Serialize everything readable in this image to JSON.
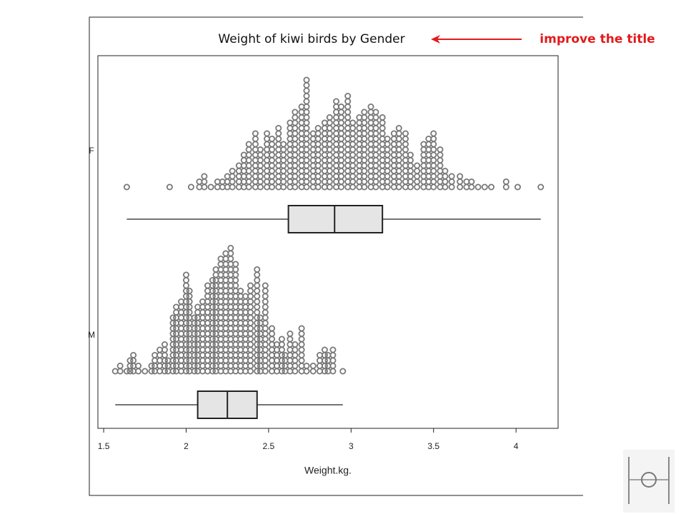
{
  "chart_data": {
    "type": "dotplot-box",
    "title": "Weight of kiwi birds by Gender",
    "annotation": "improve the title",
    "xlabel": "Weight.kg.",
    "xlim": [
      1.465,
      4.255
    ],
    "xticks": [
      1.5,
      2,
      2.5,
      3,
      3.5,
      4
    ],
    "dot_color": "#777777",
    "box_color": "#e5e5e5",
    "annotation_color": "#e31a1c",
    "groups": [
      {
        "name": "F",
        "x": [
          1.64,
          1.9,
          2.03,
          2.08,
          2.11,
          2.15,
          2.19,
          2.22,
          2.25,
          2.28,
          2.32,
          2.35,
          2.38,
          2.42,
          2.45,
          2.49,
          2.52,
          2.56,
          2.59,
          2.63,
          2.66,
          2.7,
          2.73,
          2.77,
          2.8,
          2.84,
          2.87,
          2.91,
          2.94,
          2.98,
          3.01,
          3.05,
          3.08,
          3.12,
          3.15,
          3.19,
          3.22,
          3.26,
          3.29,
          3.33,
          3.36,
          3.4,
          3.44,
          3.47,
          3.5,
          3.54,
          3.57,
          3.61,
          3.66,
          3.7,
          3.73,
          3.77,
          3.81,
          3.85,
          3.94,
          4.01,
          4.15
        ],
        "counts": [
          1,
          1,
          1,
          2,
          3,
          1,
          2,
          2,
          3,
          4,
          5,
          7,
          9,
          11,
          8,
          11,
          10,
          12,
          9,
          13,
          15,
          16,
          21,
          11,
          12,
          13,
          14,
          17,
          16,
          18,
          13,
          14,
          15,
          16,
          15,
          14,
          10,
          11,
          12,
          11,
          7,
          5,
          9,
          10,
          11,
          8,
          4,
          3,
          3,
          2,
          2,
          1,
          1,
          1,
          2,
          1,
          1
        ],
        "box": {
          "min": 1.64,
          "q1": 2.62,
          "median": 2.9,
          "q3": 3.19,
          "max": 4.15
        }
      },
      {
        "name": "M",
        "x": [
          1.57,
          1.6,
          1.64,
          1.66,
          1.68,
          1.71,
          1.75,
          1.79,
          1.81,
          1.84,
          1.87,
          1.89,
          1.92,
          1.94,
          1.97,
          2.0,
          2.02,
          2.05,
          2.07,
          2.1,
          2.13,
          2.16,
          2.18,
          2.21,
          2.24,
          2.27,
          2.3,
          2.33,
          2.36,
          2.39,
          2.43,
          2.45,
          2.48,
          2.52,
          2.55,
          2.58,
          2.6,
          2.63,
          2.66,
          2.7,
          2.73,
          2.77,
          2.81,
          2.84,
          2.86,
          2.89,
          2.95
        ],
        "counts": [
          1,
          2,
          1,
          3,
          4,
          2,
          1,
          2,
          4,
          5,
          6,
          3,
          11,
          13,
          14,
          19,
          16,
          11,
          13,
          14,
          17,
          18,
          20,
          22,
          23,
          24,
          21,
          16,
          15,
          17,
          20,
          11,
          17,
          9,
          6,
          7,
          4,
          8,
          6,
          9,
          2,
          2,
          4,
          5,
          4,
          5,
          1
        ],
        "box": {
          "min": 1.57,
          "q1": 2.07,
          "median": 2.25,
          "q3": 2.43,
          "max": 2.95
        }
      }
    ]
  }
}
